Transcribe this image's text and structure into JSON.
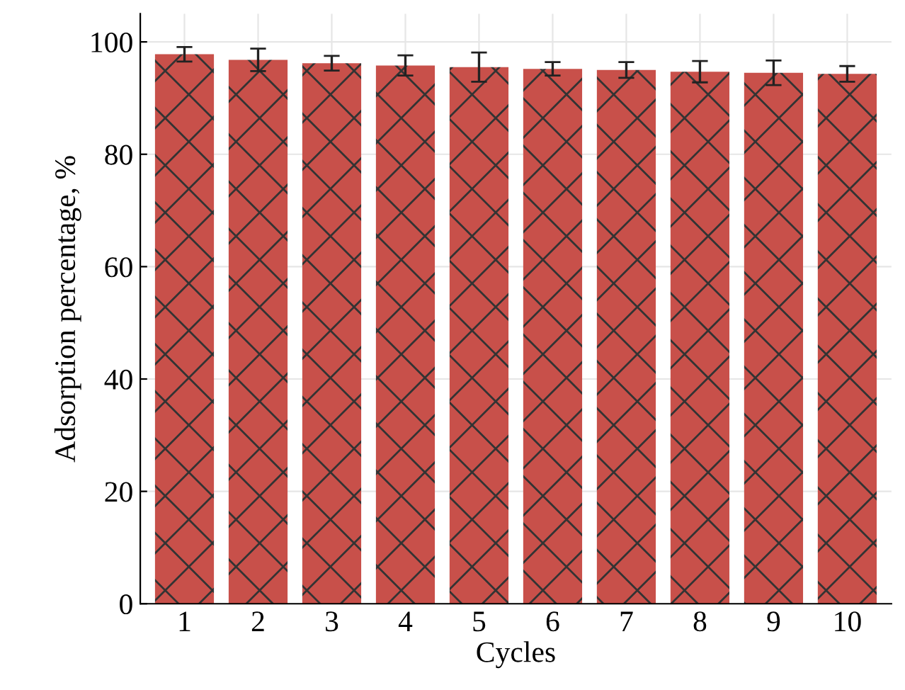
{
  "chart_data": {
    "type": "bar",
    "xlabel": "Cycles",
    "ylabel": "Adsorption percentage, %",
    "categories": [
      "1",
      "2",
      "3",
      "4",
      "5",
      "6",
      "7",
      "8",
      "9",
      "10"
    ],
    "values": [
      97.8,
      96.8,
      96.2,
      95.8,
      95.5,
      95.2,
      95.0,
      94.7,
      94.5,
      94.3
    ],
    "errors": [
      1.3,
      2.0,
      1.3,
      1.8,
      2.6,
      1.2,
      1.4,
      1.9,
      2.2,
      1.4
    ],
    "color": "#c8504a",
    "ylim": [
      0,
      105
    ],
    "yticks": [
      0,
      20,
      40,
      60,
      80,
      100
    ],
    "grid": true
  }
}
